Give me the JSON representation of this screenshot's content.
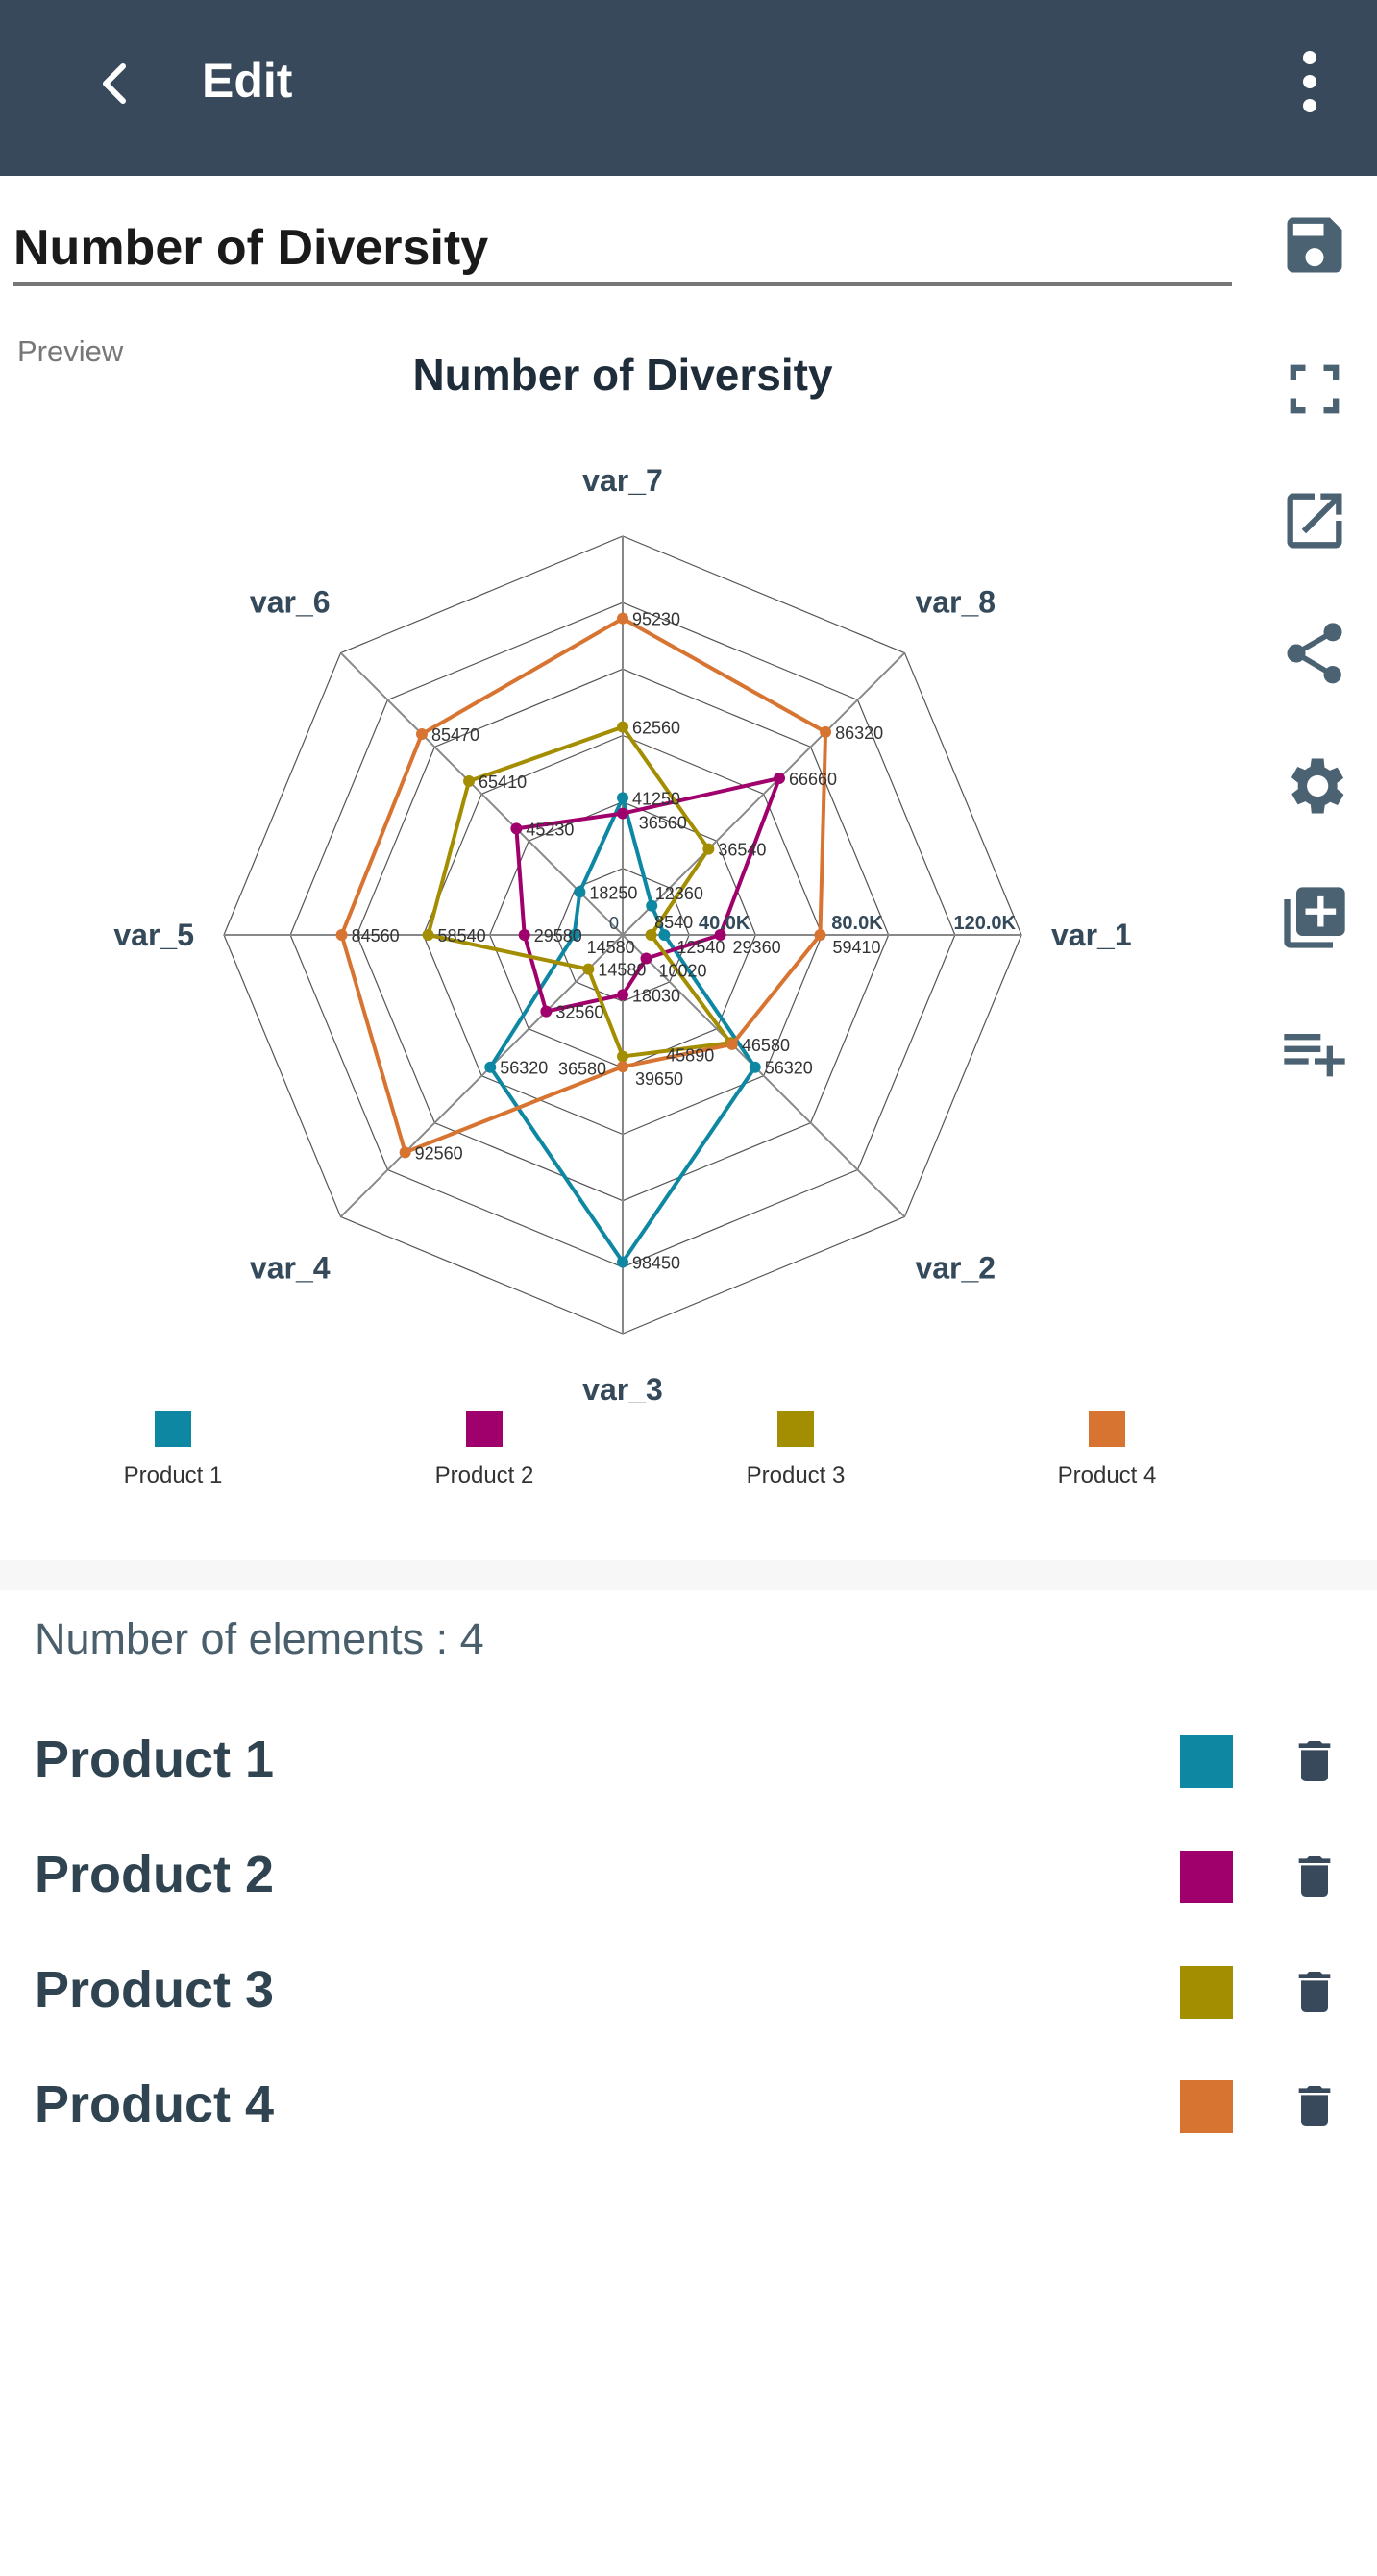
{
  "header": {
    "title": "Edit",
    "back_icon": "chevron-left-icon",
    "menu_icon": "more-vert-icon"
  },
  "chart_title_input": {
    "value": "Number of Diversity"
  },
  "preview_label": "Preview",
  "side_icons": [
    "save-icon",
    "fullscreen-icon",
    "open-in-new-icon",
    "share-icon",
    "gear-icon",
    "add-to-library-icon",
    "playlist-add-icon"
  ],
  "chart_data": {
    "type": "radar",
    "title": "Number of Diversity",
    "axes": [
      "var_1",
      "var_2",
      "var_3",
      "var_4",
      "var_5",
      "var_6",
      "var_7",
      "var_8"
    ],
    "range": [
      0,
      120000
    ],
    "grid_step": 20000,
    "tick_labels": [
      "0",
      "40.0K",
      "80.0K",
      "120.0K"
    ],
    "tick_values": [
      0,
      40000,
      80000,
      120000
    ],
    "legend_position": "bottom",
    "series": [
      {
        "name": "Product 1",
        "color": "#0e87a3",
        "values": [
          12540,
          56320,
          98450,
          56320,
          14580,
          18250,
          41250,
          12360
        ]
      },
      {
        "name": "Product 2",
        "color": "#a0006b",
        "values": [
          29360,
          10020,
          18030,
          32560,
          29580,
          45230,
          36560,
          66660
        ]
      },
      {
        "name": "Product 3",
        "color": "#a38d00",
        "values": [
          8540,
          45890,
          36580,
          14580,
          58540,
          65410,
          62560,
          36540
        ]
      },
      {
        "name": "Product 4",
        "color": "#d87431",
        "values": [
          59410,
          46580,
          39650,
          92560,
          84560,
          85470,
          95230,
          86320
        ]
      }
    ]
  },
  "elements": {
    "count_label": "Number of elements : 4",
    "items": [
      {
        "name": "Product 1",
        "color": "#0e87a3"
      },
      {
        "name": "Product 2",
        "color": "#a0006b"
      },
      {
        "name": "Product 3",
        "color": "#a38d00"
      },
      {
        "name": "Product 4",
        "color": "#d87431"
      }
    ]
  }
}
